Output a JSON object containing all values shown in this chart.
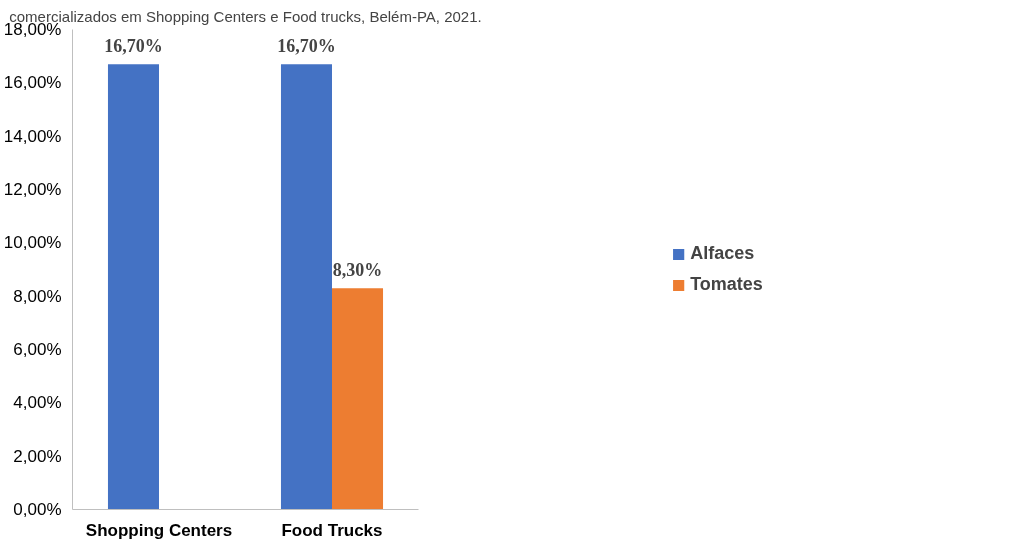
{
  "chart_data": {
    "type": "bar",
    "title": "comercializados em Shopping Centers e Food trucks, Belém-PA, 2021.",
    "categories": [
      "Shopping Centers",
      "Food Trucks"
    ],
    "series": [
      {
        "name": "Alfaces",
        "color": "#4472c4",
        "values": [
          16.7,
          16.7
        ],
        "value_labels": [
          "16,70%",
          "16,70%"
        ]
      },
      {
        "name": "Tomates",
        "color": "#ed7d31",
        "values": [
          null,
          8.3
        ],
        "value_labels": [
          null,
          "8,30%"
        ]
      }
    ],
    "ylim": [
      0,
      18
    ],
    "yticks": [
      {
        "value": 0,
        "label": "0,00%"
      },
      {
        "value": 2,
        "label": "2,00%"
      },
      {
        "value": 4,
        "label": "4,00%"
      },
      {
        "value": 6,
        "label": "6,00%"
      },
      {
        "value": 8,
        "label": "8,00%"
      },
      {
        "value": 10,
        "label": "10,00%"
      },
      {
        "value": 12,
        "label": "12,00%"
      },
      {
        "value": 14,
        "label": "14,00%"
      },
      {
        "value": 16,
        "label": "16,00%"
      },
      {
        "value": 18,
        "label": "18,00%"
      }
    ],
    "grid": false,
    "legend": "right"
  }
}
